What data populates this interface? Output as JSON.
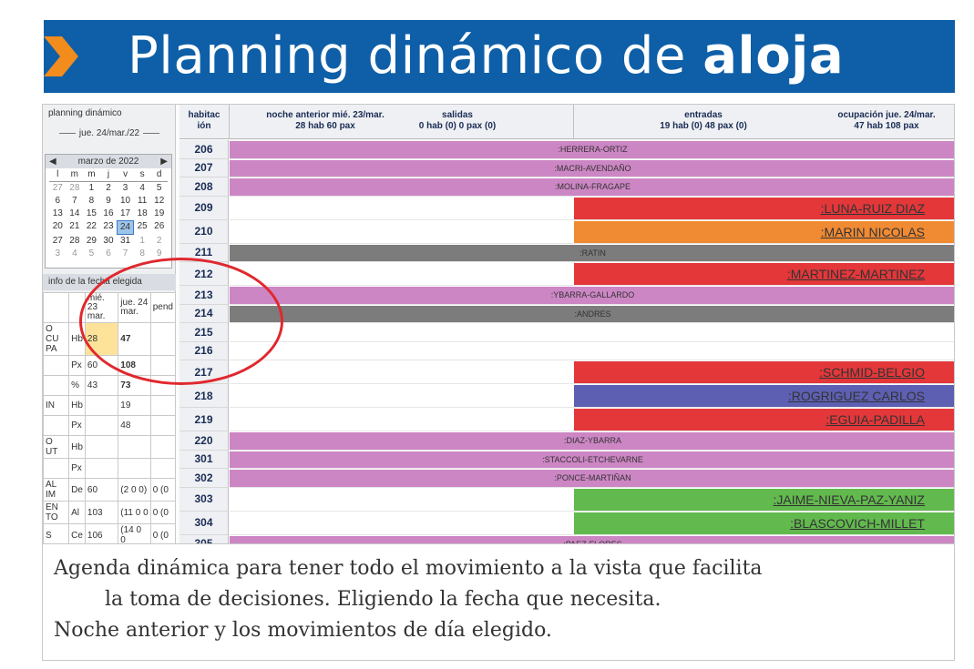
{
  "banner": {
    "title_regular": "Planning dinámico de ",
    "title_bold": "aloja",
    "bg_color": "#0e5fa7",
    "arrow_color": "#f28c1c"
  },
  "sidebar": {
    "title": "planning dinámico",
    "date": "jue. 24/mar./22",
    "calendar": {
      "prev_icon": "◀",
      "next_icon": "▶",
      "month": "marzo de 2022",
      "weekdays": [
        "l",
        "m",
        "m",
        "j",
        "v",
        "s",
        "d"
      ],
      "weeks": [
        [
          "27",
          "28",
          "1",
          "2",
          "3",
          "4",
          "5"
        ],
        [
          "6",
          "7",
          "8",
          "9",
          "10",
          "11",
          "12"
        ],
        [
          "13",
          "14",
          "15",
          "16",
          "17",
          "18",
          "19"
        ],
        [
          "20",
          "21",
          "22",
          "23",
          "24",
          "25",
          "26"
        ],
        [
          "27",
          "28",
          "29",
          "30",
          "31",
          "1",
          "2"
        ],
        [
          "3",
          "4",
          "5",
          "6",
          "7",
          "8",
          "9"
        ]
      ],
      "selected": "24"
    },
    "info_title": "info de la fecha elegida",
    "info_header": [
      "",
      "",
      "mié. 23 mar.",
      "jue. 24 mar.",
      "pend"
    ],
    "info_rows": [
      [
        "O CU PA",
        "Hb",
        "28",
        "47",
        ""
      ],
      [
        "",
        "Px",
        "60",
        "108",
        ""
      ],
      [
        "",
        "%",
        "43",
        "73",
        ""
      ],
      [
        "IN",
        "Hb",
        "",
        "19",
        ""
      ],
      [
        "",
        "Px",
        "",
        "48",
        ""
      ],
      [
        "O UT",
        "Hb",
        "",
        "",
        ""
      ],
      [
        "",
        "Px",
        "",
        "",
        ""
      ],
      [
        "AL IM",
        "De",
        "60",
        "(2 0 0)",
        "0 (0"
      ],
      [
        "EN TO",
        "Al",
        "103",
        "(11 0 0",
        "0 (0"
      ],
      [
        "S",
        "Ce",
        "106",
        "(14 0 0",
        "0 (0"
      ]
    ]
  },
  "grid": {
    "headers": {
      "room": "habitac ión",
      "prev_night": "noche anterior mié. 23/mar.\n28 hab 60 pax",
      "exits": "salidas\n0 hab (0) 0 pax (0)",
      "entries": "entradas\n19 hab (0) 48 pax (0)",
      "occupancy": "ocupación jue. 24/mar.\n47 hab 108 pax"
    },
    "colors": {
      "stay": "#cc86c4",
      "blocked": "#7c7c7c",
      "red": "#e3373a",
      "orange": "#f08a33",
      "blue": "#5d5fb3",
      "green": "#62b94e"
    },
    "rows": [
      {
        "room": "206",
        "type": "stay",
        "color": "stay",
        "name": ":HERRERA-ORTIZ"
      },
      {
        "room": "207",
        "type": "stay",
        "color": "stay",
        "name": ":MACRI-AVENDAÑO"
      },
      {
        "room": "208",
        "type": "stay",
        "color": "stay",
        "name": ":MOLINA-FRAGAPE"
      },
      {
        "room": "209",
        "type": "entry",
        "color": "red",
        "name": ":LUNA-RUIZ DIAZ"
      },
      {
        "room": "210",
        "type": "entry",
        "color": "orange",
        "name": ":MARIN NICOLAS"
      },
      {
        "room": "211",
        "type": "stay",
        "color": "blocked",
        "name": ":RATIN"
      },
      {
        "room": "212",
        "type": "entry",
        "color": "red",
        "name": ":MARTINEZ-MARTINEZ"
      },
      {
        "room": "213",
        "type": "stay",
        "color": "stay",
        "name": ":YBARRA-GALLARDO"
      },
      {
        "room": "214",
        "type": "stay",
        "color": "blocked",
        "name": ":ANDRES"
      },
      {
        "room": "215",
        "type": "empty",
        "color": "",
        "name": ""
      },
      {
        "room": "216",
        "type": "empty",
        "color": "",
        "name": ""
      },
      {
        "room": "217",
        "type": "entry",
        "color": "red",
        "name": ":SCHMID-BELGIO"
      },
      {
        "room": "218",
        "type": "entry",
        "color": "blue",
        "name": ":ROGRIGUEZ CARLOS"
      },
      {
        "room": "219",
        "type": "entry",
        "color": "red",
        "name": ":EGUIA-PADILLA"
      },
      {
        "room": "220",
        "type": "stay",
        "color": "stay",
        "name": ":DIAZ-YBARRA"
      },
      {
        "room": "301",
        "type": "stay",
        "color": "stay",
        "name": ":STACCOLI-ETCHEVARNE"
      },
      {
        "room": "302",
        "type": "stay",
        "color": "stay",
        "name": ":PONCE-MARTIÑAN"
      },
      {
        "room": "303",
        "type": "entry",
        "color": "green",
        "name": ":JAIME-NIEVA-PAZ-YANIZ"
      },
      {
        "room": "304",
        "type": "entry",
        "color": "green",
        "name": ":BLASCOVICH-MILLET"
      },
      {
        "room": "305",
        "type": "stay",
        "color": "stay",
        "name": ":PAEZ-FLORES"
      }
    ]
  },
  "caption": {
    "line1": "Agenda dinámica para tener todo el movimiento a la vista que facilita",
    "line2": "la toma de decisiones.    Eligiendo la fecha que necesita.",
    "line3": "Noche anterior y los movimientos de día elegido."
  }
}
